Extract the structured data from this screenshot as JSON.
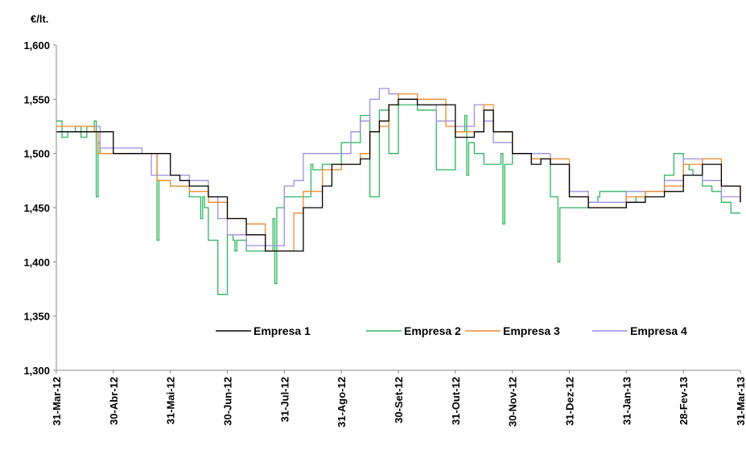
{
  "chart_data": {
    "type": "line",
    "title": "",
    "ylabel": "€/lt.",
    "xlabel": "",
    "ylim": [
      1.3,
      1.6
    ],
    "yticks": [
      "1,300",
      "1,350",
      "1,400",
      "1,450",
      "1,500",
      "1,550",
      "1,600"
    ],
    "categories": [
      "31-Mar-12",
      "30-Abr-12",
      "31-Mai-12",
      "30-Jun-12",
      "31-Jul-12",
      "31-Ago-12",
      "30-Set-12",
      "31-Out-12",
      "30-Nov-12",
      "31-Dez-12",
      "31-Jan-13",
      "28-Fev-13",
      "31-Mar-13"
    ],
    "legend_position": "bottom-center-inside",
    "grid": false,
    "series": [
      {
        "name": "Empresa 1",
        "color": "#000000",
        "x": [
          0,
          2,
          3,
          4,
          5,
          6,
          6.5,
          7,
          8,
          9,
          10,
          11,
          12,
          13,
          14,
          14.5,
          15,
          16,
          16.5,
          17,
          17.5,
          18,
          19,
          20,
          21,
          22,
          22.5,
          23,
          24,
          25,
          25.5,
          26,
          27,
          28,
          29,
          30,
          31,
          32,
          33,
          34,
          35,
          36
        ],
        "values": [
          1.52,
          1.52,
          1.5,
          1.5,
          1.5,
          1.48,
          1.475,
          1.47,
          1.46,
          1.44,
          1.425,
          1.41,
          1.41,
          1.45,
          1.47,
          1.49,
          1.49,
          1.495,
          1.52,
          1.53,
          1.545,
          1.55,
          1.545,
          1.545,
          1.515,
          1.52,
          1.54,
          1.52,
          1.5,
          1.49,
          1.495,
          1.49,
          1.46,
          1.45,
          1.45,
          1.455,
          1.46,
          1.465,
          1.48,
          1.49,
          1.47,
          1.455
        ]
      },
      {
        "name": "Empresa 2",
        "color": "#2eb55f",
        "x": [
          0,
          0.3,
          0.6,
          1,
          1.3,
          1.6,
          2,
          2.1,
          2.2,
          2.3,
          3,
          4,
          5,
          5.2,
          5.3,
          5.4,
          6,
          7,
          7.6,
          7.7,
          7.8,
          8,
          8.5,
          9,
          9.3,
          9.4,
          9.5,
          10,
          10.5,
          11,
          11.4,
          11.5,
          11.6,
          12,
          13,
          13.4,
          13.5,
          13.6,
          14,
          14.5,
          15,
          16,
          16.5,
          17,
          17.5,
          18,
          18.5,
          19,
          19.5,
          20,
          21,
          21.5,
          21.6,
          21.7,
          22,
          22.5,
          23,
          23.4,
          23.5,
          23.6,
          24,
          25,
          26,
          26.3,
          26.4,
          26.5,
          27,
          27.5,
          28,
          28.4,
          28.5,
          28.6,
          29,
          30,
          30.5,
          31,
          32,
          32.5,
          33,
          33.3,
          33.5,
          34,
          34.5,
          35,
          35.5,
          36
        ],
        "values": [
          1.53,
          1.515,
          1.52,
          1.525,
          1.515,
          1.525,
          1.53,
          1.46,
          1.51,
          1.5,
          1.5,
          1.5,
          1.5,
          1.5,
          1.42,
          1.475,
          1.47,
          1.46,
          1.44,
          1.46,
          1.45,
          1.42,
          1.37,
          1.425,
          1.42,
          1.41,
          1.42,
          1.41,
          1.41,
          1.41,
          1.44,
          1.38,
          1.45,
          1.46,
          1.46,
          1.49,
          1.485,
          1.485,
          1.49,
          1.49,
          1.51,
          1.535,
          1.46,
          1.54,
          1.5,
          1.545,
          1.545,
          1.54,
          1.54,
          1.485,
          1.52,
          1.535,
          1.48,
          1.51,
          1.5,
          1.49,
          1.49,
          1.5,
          1.435,
          1.49,
          1.5,
          1.495,
          1.46,
          1.46,
          1.4,
          1.45,
          1.45,
          1.45,
          1.455,
          1.455,
          1.46,
          1.465,
          1.465,
          1.455,
          1.46,
          1.465,
          1.48,
          1.5,
          1.49,
          1.485,
          1.48,
          1.47,
          1.465,
          1.455,
          1.445,
          1.445
        ]
      },
      {
        "name": "Empresa 3",
        "color": "#f0882a",
        "x": [
          0,
          2,
          2.2,
          3,
          4,
          5,
          5.3,
          6,
          7,
          8,
          9,
          10,
          11,
          12,
          12.5,
          13,
          14,
          15,
          16,
          16.5,
          17,
          17.5,
          18,
          19,
          20,
          20.5,
          21,
          22,
          22.5,
          23,
          24,
          25,
          26,
          27,
          28,
          29,
          30,
          31,
          32,
          33,
          34,
          35,
          36
        ],
        "values": [
          1.525,
          1.52,
          1.5,
          1.5,
          1.5,
          1.5,
          1.475,
          1.47,
          1.465,
          1.455,
          1.44,
          1.435,
          1.41,
          1.41,
          1.445,
          1.465,
          1.485,
          1.49,
          1.5,
          1.52,
          1.525,
          1.545,
          1.555,
          1.55,
          1.55,
          1.525,
          1.52,
          1.52,
          1.545,
          1.52,
          1.5,
          1.495,
          1.495,
          1.46,
          1.45,
          1.45,
          1.46,
          1.465,
          1.47,
          1.49,
          1.495,
          1.47,
          1.455
        ]
      },
      {
        "name": "Empresa 4",
        "color": "#a08ee0",
        "x": [
          0,
          2,
          2.3,
          3,
          4,
          4.5,
          5,
          6,
          7,
          8,
          8.5,
          9,
          10,
          11,
          12,
          12.5,
          13,
          14,
          15,
          15.5,
          16,
          16.5,
          17,
          17.5,
          18,
          19,
          20,
          20.5,
          21,
          22,
          22.5,
          23,
          24,
          25,
          26,
          27,
          28,
          29,
          30,
          31,
          32,
          33,
          34,
          35,
          36
        ],
        "values": [
          1.52,
          1.525,
          1.505,
          1.505,
          1.505,
          1.5,
          1.48,
          1.48,
          1.475,
          1.46,
          1.44,
          1.425,
          1.415,
          1.415,
          1.47,
          1.475,
          1.5,
          1.5,
          1.5,
          1.52,
          1.53,
          1.55,
          1.56,
          1.555,
          1.55,
          1.545,
          1.53,
          1.53,
          1.525,
          1.545,
          1.53,
          1.51,
          1.5,
          1.5,
          1.49,
          1.465,
          1.455,
          1.455,
          1.465,
          1.465,
          1.475,
          1.495,
          1.475,
          1.46,
          1.455
        ]
      }
    ]
  }
}
